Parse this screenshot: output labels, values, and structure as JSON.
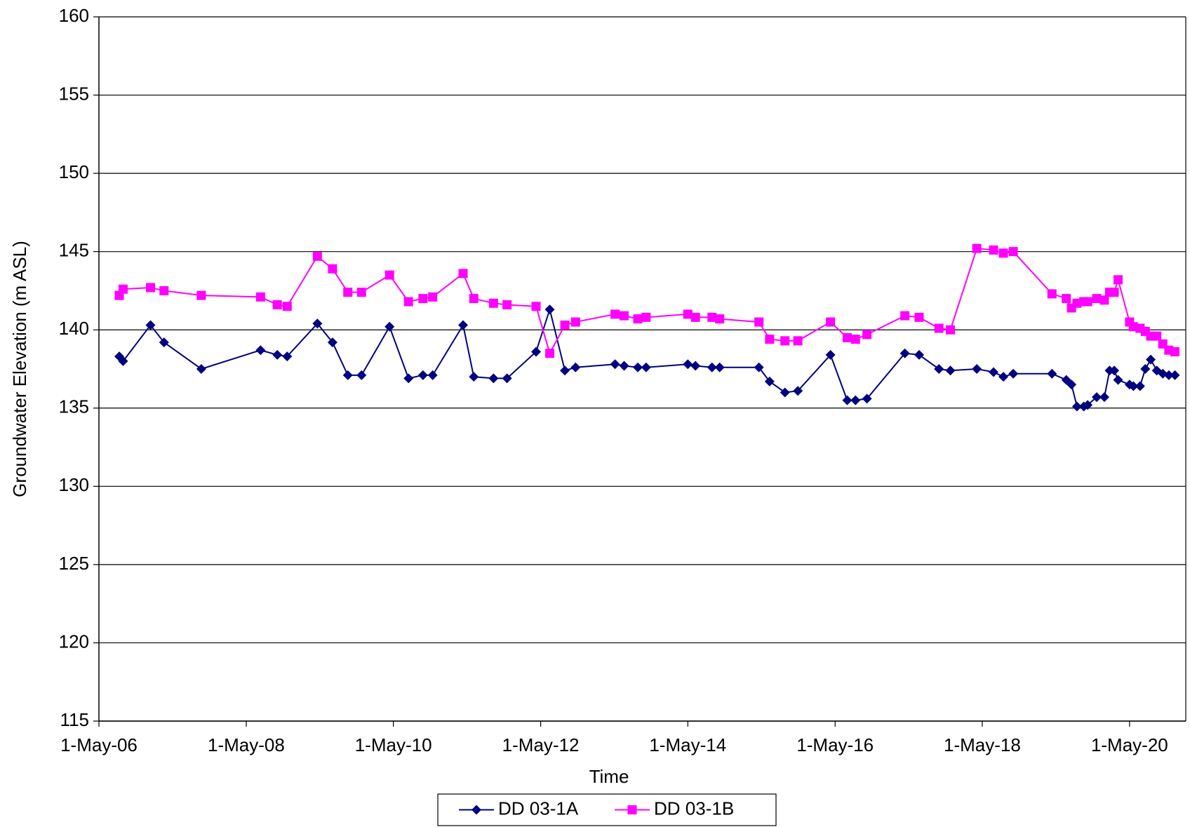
{
  "chart_data": {
    "type": "line",
    "x_label": "Time",
    "y_label": "Groundwater Elevation (m ASL)",
    "x": [
      "2006-08-10",
      "2006-08-29",
      "2007-01-12",
      "2007-03-20",
      "2007-09-21",
      "2008-07-11",
      "2008-10-02",
      "2008-11-20",
      "2009-04-19",
      "2009-07-03",
      "2009-09-17",
      "2009-11-24",
      "2010-04-12",
      "2010-07-15",
      "2010-09-25",
      "2010-11-12",
      "2011-04-12",
      "2011-06-04",
      "2011-09-10",
      "2011-11-16",
      "2012-04-08",
      "2012-06-15",
      "2012-08-29",
      "2012-10-21",
      "2013-05-05",
      "2013-06-19",
      "2013-08-26",
      "2013-10-06",
      "2014-05-01",
      "2014-06-08",
      "2014-08-29",
      "2014-10-06",
      "2015-04-19",
      "2015-06-11",
      "2015-08-26",
      "2015-10-29",
      "2016-04-08",
      "2016-06-30",
      "2016-08-10",
      "2016-10-06",
      "2017-04-12",
      "2017-06-22",
      "2017-09-28",
      "2017-11-24",
      "2018-04-04",
      "2018-06-26",
      "2018-08-14",
      "2018-10-02",
      "2019-04-12",
      "2019-06-22",
      "2019-07-18",
      "2019-08-14",
      "2019-09-17",
      "2019-10-06",
      "2019-11-20",
      "2019-12-28",
      "2020-01-23",
      "2020-02-15",
      "2020-03-05",
      "2020-05-01",
      "2020-05-20",
      "2020-06-22",
      "2020-07-18",
      "2020-08-14",
      "2020-09-13",
      "2020-10-13",
      "2020-11-12",
      "2020-12-12"
    ],
    "series": [
      {
        "name": "DD 03-1A",
        "color": "#000080",
        "marker": "diamond",
        "values": [
          138.3,
          138.0,
          140.3,
          139.2,
          137.5,
          138.7,
          138.4,
          138.3,
          140.4,
          139.2,
          137.1,
          137.1,
          140.2,
          136.9,
          137.1,
          137.1,
          140.3,
          137.0,
          136.9,
          136.9,
          138.6,
          141.3,
          137.4,
          137.6,
          137.8,
          137.7,
          137.6,
          137.6,
          137.8,
          137.7,
          137.6,
          137.6,
          137.6,
          136.7,
          136.0,
          136.1,
          138.4,
          135.5,
          135.5,
          135.6,
          138.5,
          138.4,
          137.5,
          137.4,
          137.5,
          137.3,
          137.0,
          137.2,
          137.2,
          136.8,
          136.5,
          135.1,
          135.1,
          135.2,
          135.7,
          135.7,
          137.4,
          137.4,
          136.8,
          136.5,
          136.4,
          136.4,
          137.5,
          138.1,
          137.4,
          137.2,
          137.1,
          137.1
        ]
      },
      {
        "name": "DD 03-1B",
        "color": "#ff00ff",
        "marker": "square",
        "values": [
          142.2,
          142.6,
          142.7,
          142.5,
          142.2,
          142.1,
          141.6,
          141.5,
          144.7,
          143.9,
          142.4,
          142.4,
          143.5,
          141.8,
          142.0,
          142.1,
          143.6,
          142.0,
          141.7,
          141.6,
          141.5,
          138.5,
          140.3,
          140.5,
          141.0,
          140.9,
          140.7,
          140.8,
          141.0,
          140.8,
          140.8,
          140.7,
          140.5,
          139.4,
          139.3,
          139.3,
          140.5,
          139.5,
          139.4,
          139.7,
          140.9,
          140.8,
          140.1,
          140.0,
          145.2,
          145.1,
          144.9,
          145.0,
          142.3,
          142.0,
          141.4,
          141.7,
          141.8,
          141.8,
          142.0,
          141.9,
          142.4,
          142.4,
          143.2,
          140.5,
          140.2,
          140.1,
          139.9,
          139.6,
          139.6,
          139.1,
          138.7,
          138.6
        ]
      }
    ],
    "xlim": [
      "2006-05-01",
      "2021-02-04"
    ],
    "xticks": [
      {
        "value": "2006-05-01",
        "label": "1-May-06"
      },
      {
        "value": "2008-05-01",
        "label": "1-May-08"
      },
      {
        "value": "2010-05-01",
        "label": "1-May-10"
      },
      {
        "value": "2012-05-01",
        "label": "1-May-12"
      },
      {
        "value": "2014-05-01",
        "label": "1-May-14"
      },
      {
        "value": "2016-05-01",
        "label": "1-May-16"
      },
      {
        "value": "2018-05-01",
        "label": "1-May-18"
      },
      {
        "value": "2020-05-01",
        "label": "1-May-20"
      }
    ],
    "ylim": [
      115,
      160
    ],
    "yticks": [
      115,
      120,
      125,
      130,
      135,
      140,
      145,
      150,
      155,
      160
    ],
    "grid": true,
    "legend": "bottom"
  }
}
